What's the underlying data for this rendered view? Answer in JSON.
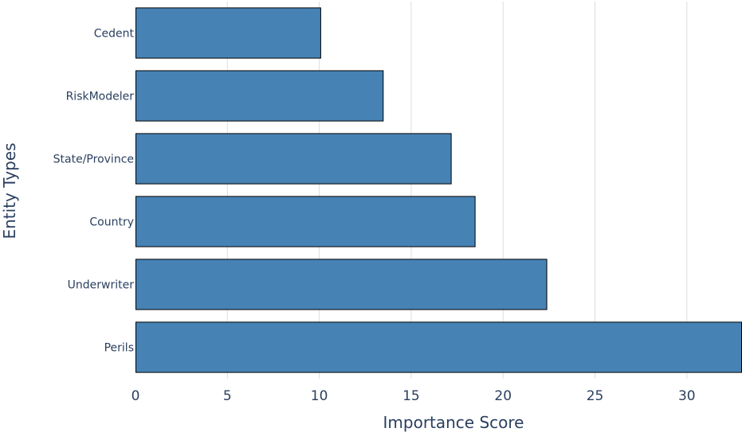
{
  "chart_data": {
    "type": "bar",
    "orientation": "horizontal",
    "categories": [
      "Cedent",
      "RiskModeler",
      "State/Province",
      "Country",
      "Underwriter",
      "Perils"
    ],
    "values": [
      10.1,
      13.5,
      17.2,
      18.5,
      22.4,
      33.0
    ],
    "xlabel": "Importance Score",
    "ylabel": "Entity Types",
    "xlim": [
      0,
      33
    ],
    "xticks": [
      0,
      5,
      10,
      15,
      20,
      25,
      30
    ],
    "grid": "vertical",
    "bar_color": "#4682b4",
    "bar_edge_color": "#000000",
    "grid_color": "#dddddd"
  }
}
